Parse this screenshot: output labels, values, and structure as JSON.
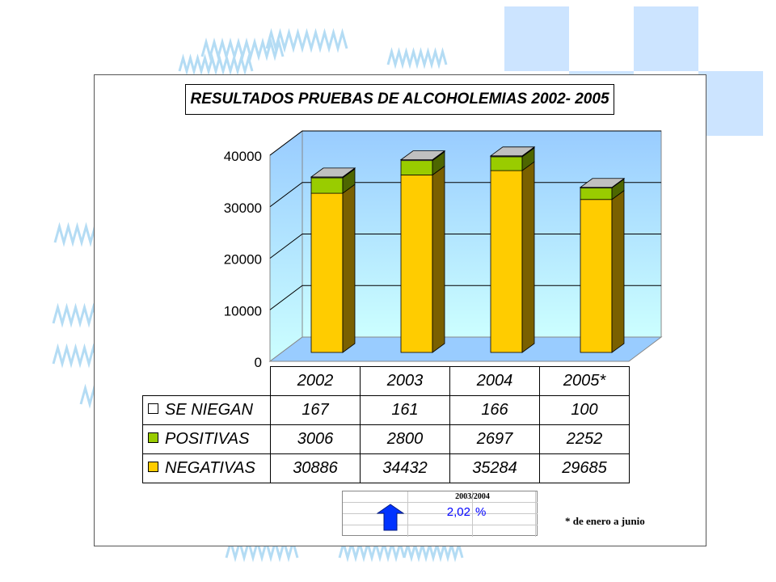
{
  "colors": {
    "negativas": "#ffcc00",
    "negativas_side": "#7a6000",
    "positivas": "#99cc00",
    "positivas_side": "#4d6600",
    "se_niegan": "#ffffff",
    "cap_top": "#c0c0c0",
    "wall_top": "#99ccff",
    "wall_bottom": "#ccffff",
    "floor": "#99ccff",
    "arrow": "#0033ff",
    "decor_squares": "#cce4ff",
    "decor_pattern": "#b4dcf4"
  },
  "chart_data": {
    "type": "bar",
    "stacked": true,
    "title": "RESULTADOS PRUEBAS DE ALCOHOLEMIAS 2002- 2005",
    "categories": [
      "2002",
      "2003",
      "2004",
      "2005*"
    ],
    "series": [
      {
        "name": "SE NIEGAN",
        "values": [
          167,
          161,
          166,
          100
        ]
      },
      {
        "name": "POSITIVAS",
        "values": [
          3006,
          2800,
          2697,
          2252
        ]
      },
      {
        "name": "NEGATIVAS",
        "values": [
          30886,
          34432,
          35284,
          29685
        ]
      }
    ],
    "ylim": [
      0,
      40000
    ],
    "yticks": [
      "0",
      "10000",
      "20000",
      "30000",
      "40000"
    ],
    "grid": true,
    "legend": "data-table-below"
  },
  "table": {
    "rows": [
      {
        "label": "SE NIEGAN",
        "values": [
          "167",
          "161",
          "166",
          "100"
        ]
      },
      {
        "label": "POSITIVAS",
        "values": [
          "3006",
          "2800",
          "2697",
          "2252"
        ]
      },
      {
        "label": "NEGATIVAS",
        "values": [
          "30886",
          "34432",
          "35284",
          "29685"
        ]
      }
    ]
  },
  "change_box": {
    "header": "2003/2004",
    "value": "2,02",
    "unit": "%",
    "icon": "arrow-up-icon"
  },
  "footnote": "* de enero a junio"
}
